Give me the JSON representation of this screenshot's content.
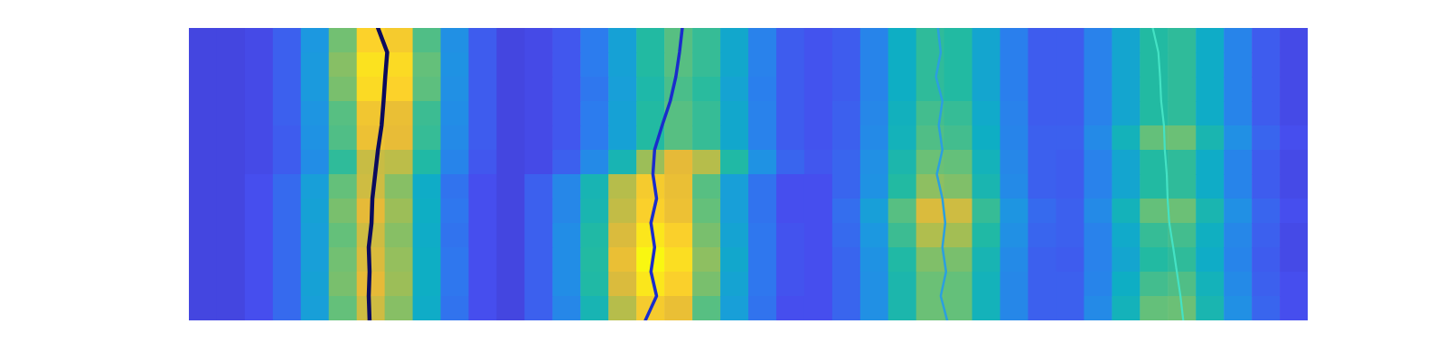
{
  "chart_data": {
    "type": "heatmap",
    "xlim": [
      0,
      40
    ],
    "ylim": [
      0,
      12
    ],
    "tick_labels": false,
    "color_range": [
      0,
      1
    ],
    "cells": [
      [
        0.08,
        0.08,
        0.09,
        0.14,
        0.3,
        0.62,
        0.9,
        0.87,
        0.57,
        0.27,
        0.13,
        0.08,
        0.09,
        0.12,
        0.2,
        0.34,
        0.5,
        0.58,
        0.53,
        0.37,
        0.22,
        0.13,
        0.11,
        0.13,
        0.23,
        0.4,
        0.52,
        0.5,
        0.36,
        0.21,
        0.13,
        0.13,
        0.22,
        0.36,
        0.5,
        0.52,
        0.39,
        0.23,
        0.13,
        0.09
      ],
      [
        0.08,
        0.08,
        0.09,
        0.14,
        0.31,
        0.65,
        0.94,
        0.92,
        0.6,
        0.28,
        0.13,
        0.08,
        0.09,
        0.12,
        0.2,
        0.34,
        0.5,
        0.58,
        0.53,
        0.37,
        0.22,
        0.13,
        0.11,
        0.13,
        0.23,
        0.4,
        0.52,
        0.5,
        0.36,
        0.21,
        0.13,
        0.13,
        0.22,
        0.36,
        0.5,
        0.52,
        0.39,
        0.23,
        0.13,
        0.09
      ],
      [
        0.08,
        0.08,
        0.09,
        0.14,
        0.31,
        0.63,
        0.92,
        0.9,
        0.59,
        0.27,
        0.13,
        0.08,
        0.09,
        0.12,
        0.19,
        0.33,
        0.48,
        0.56,
        0.51,
        0.35,
        0.21,
        0.13,
        0.11,
        0.13,
        0.23,
        0.4,
        0.52,
        0.5,
        0.36,
        0.21,
        0.13,
        0.13,
        0.22,
        0.36,
        0.5,
        0.52,
        0.39,
        0.23,
        0.13,
        0.09
      ],
      [
        0.08,
        0.08,
        0.09,
        0.14,
        0.29,
        0.58,
        0.85,
        0.82,
        0.54,
        0.26,
        0.13,
        0.08,
        0.09,
        0.12,
        0.2,
        0.34,
        0.5,
        0.58,
        0.53,
        0.37,
        0.22,
        0.13,
        0.11,
        0.14,
        0.24,
        0.42,
        0.55,
        0.53,
        0.38,
        0.22,
        0.13,
        0.13,
        0.22,
        0.36,
        0.5,
        0.52,
        0.39,
        0.23,
        0.13,
        0.09
      ],
      [
        0.08,
        0.08,
        0.09,
        0.13,
        0.28,
        0.57,
        0.83,
        0.81,
        0.53,
        0.25,
        0.13,
        0.08,
        0.09,
        0.12,
        0.2,
        0.34,
        0.5,
        0.58,
        0.53,
        0.37,
        0.22,
        0.13,
        0.11,
        0.14,
        0.25,
        0.43,
        0.57,
        0.55,
        0.4,
        0.23,
        0.14,
        0.14,
        0.25,
        0.43,
        0.6,
        0.61,
        0.46,
        0.27,
        0.15,
        0.1
      ],
      [
        0.08,
        0.08,
        0.09,
        0.13,
        0.26,
        0.52,
        0.75,
        0.73,
        0.49,
        0.23,
        0.12,
        0.08,
        0.09,
        0.14,
        0.25,
        0.45,
        0.68,
        0.8,
        0.72,
        0.49,
        0.28,
        0.15,
        0.12,
        0.15,
        0.27,
        0.47,
        0.61,
        0.6,
        0.43,
        0.24,
        0.14,
        0.13,
        0.22,
        0.36,
        0.5,
        0.52,
        0.39,
        0.23,
        0.13,
        0.09
      ],
      [
        0.08,
        0.08,
        0.1,
        0.16,
        0.33,
        0.6,
        0.76,
        0.65,
        0.39,
        0.18,
        0.1,
        0.08,
        0.14,
        0.24,
        0.45,
        0.72,
        0.87,
        0.82,
        0.58,
        0.33,
        0.18,
        0.1,
        0.1,
        0.15,
        0.28,
        0.5,
        0.66,
        0.64,
        0.46,
        0.25,
        0.14,
        0.13,
        0.22,
        0.36,
        0.5,
        0.52,
        0.39,
        0.23,
        0.13,
        0.09
      ],
      [
        0.08,
        0.08,
        0.1,
        0.16,
        0.34,
        0.63,
        0.8,
        0.68,
        0.4,
        0.19,
        0.1,
        0.08,
        0.14,
        0.24,
        0.46,
        0.74,
        0.89,
        0.83,
        0.6,
        0.33,
        0.18,
        0.1,
        0.1,
        0.17,
        0.33,
        0.58,
        0.78,
        0.76,
        0.53,
        0.29,
        0.16,
        0.14,
        0.25,
        0.43,
        0.6,
        0.61,
        0.46,
        0.27,
        0.15,
        0.1
      ],
      [
        0.08,
        0.08,
        0.1,
        0.16,
        0.33,
        0.6,
        0.76,
        0.65,
        0.39,
        0.18,
        0.1,
        0.08,
        0.14,
        0.26,
        0.49,
        0.78,
        0.95,
        0.89,
        0.63,
        0.35,
        0.19,
        0.11,
        0.1,
        0.16,
        0.3,
        0.54,
        0.71,
        0.69,
        0.49,
        0.27,
        0.15,
        0.14,
        0.22,
        0.38,
        0.53,
        0.55,
        0.41,
        0.24,
        0.14,
        0.09
      ],
      [
        0.08,
        0.08,
        0.1,
        0.16,
        0.33,
        0.62,
        0.78,
        0.67,
        0.4,
        0.19,
        0.1,
        0.08,
        0.14,
        0.26,
        0.5,
        0.82,
        0.99,
        0.93,
        0.66,
        0.37,
        0.19,
        0.11,
        0.1,
        0.15,
        0.28,
        0.49,
        0.64,
        0.63,
        0.45,
        0.25,
        0.14,
        0.13,
        0.22,
        0.36,
        0.5,
        0.52,
        0.39,
        0.23,
        0.13,
        0.09
      ],
      [
        0.08,
        0.08,
        0.1,
        0.16,
        0.34,
        0.63,
        0.8,
        0.68,
        0.4,
        0.19,
        0.1,
        0.08,
        0.14,
        0.26,
        0.49,
        0.78,
        0.95,
        0.89,
        0.63,
        0.35,
        0.19,
        0.11,
        0.1,
        0.15,
        0.27,
        0.47,
        0.61,
        0.6,
        0.43,
        0.24,
        0.14,
        0.14,
        0.23,
        0.4,
        0.55,
        0.57,
        0.43,
        0.25,
        0.14,
        0.1
      ],
      [
        0.08,
        0.08,
        0.1,
        0.16,
        0.33,
        0.6,
        0.76,
        0.65,
        0.39,
        0.18,
        0.1,
        0.08,
        0.14,
        0.24,
        0.45,
        0.72,
        0.87,
        0.82,
        0.58,
        0.33,
        0.18,
        0.1,
        0.1,
        0.15,
        0.27,
        0.47,
        0.61,
        0.6,
        0.43,
        0.24,
        0.14,
        0.14,
        0.25,
        0.43,
        0.6,
        0.61,
        0.46,
        0.27,
        0.15,
        0.1
      ]
    ],
    "series": [
      {
        "color": "#0b0b5e",
        "x": [
          6.76,
          7.09,
          7.02,
          6.96,
          6.89,
          6.76,
          6.66,
          6.56,
          6.53,
          6.43,
          6.46,
          6.43,
          6.46
        ],
        "values": [
          0,
          1,
          2,
          3,
          4,
          5,
          6,
          7,
          8,
          9,
          10,
          11,
          12
        ]
      },
      {
        "color": "#1a2ccc",
        "x": [
          17.64,
          17.54,
          17.41,
          17.21,
          16.92,
          16.65,
          16.59,
          16.72,
          16.52,
          16.65,
          16.52,
          16.72,
          16.32
        ],
        "values": [
          0,
          1,
          2,
          3,
          4,
          5,
          6,
          7,
          8,
          9,
          10,
          11,
          12
        ]
      },
      {
        "color": "#2b9fe0",
        "x": [
          26.78,
          26.88,
          26.71,
          26.94,
          26.81,
          26.94,
          26.74,
          26.94,
          27.04,
          26.94,
          27.07,
          26.88,
          27.11
        ],
        "values": [
          0,
          1,
          2,
          3,
          4,
          5,
          6,
          7,
          8,
          9,
          10,
          11,
          12
        ]
      },
      {
        "color": "#44e2c4",
        "x": [
          34.46,
          34.66,
          34.72,
          34.76,
          34.86,
          34.89,
          34.96,
          34.99,
          35.05,
          35.19,
          35.32,
          35.45,
          35.55
        ],
        "values": [
          0,
          1,
          2,
          3,
          4,
          5,
          6,
          7,
          8,
          9,
          10,
          11,
          12
        ]
      }
    ]
  }
}
